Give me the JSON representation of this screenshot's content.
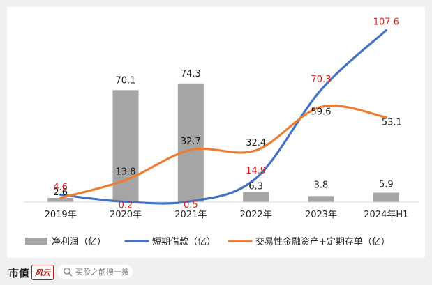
{
  "chart_data": {
    "type": "bar+line",
    "categories": [
      "2019年",
      "2020年",
      "2021年",
      "2022年",
      "2023年",
      "2024年H1"
    ],
    "ylim": [
      0,
      110
    ],
    "grid": false,
    "legend_position": "bottom",
    "series": [
      {
        "name": "净利润（亿）",
        "kind": "bar",
        "color": "#a5a5a5",
        "values": [
          2.6,
          70.1,
          74.3,
          6.3,
          3.8,
          5.9
        ],
        "labels": [
          "2.6",
          "70.1",
          "74.3",
          "6.3",
          "3.8",
          "5.9"
        ]
      },
      {
        "name": "短期借款（亿）",
        "kind": "line",
        "color": "#4472c4",
        "label_color": "#e02020",
        "values": [
          4.6,
          0.2,
          0.5,
          14.9,
          70.3,
          107.6
        ],
        "labels": [
          "4.6",
          "0.2",
          "0.5",
          "14.9",
          "70.3",
          "107.6"
        ]
      },
      {
        "name": "交易性金融资产+定期存单（亿）",
        "kind": "line",
        "color": "#ed7d31",
        "label_color": "#1a1a1a",
        "values": [
          2.6,
          13.8,
          32.7,
          32.4,
          59.6,
          53.1
        ],
        "labels": [
          "2.6",
          "13.8",
          "32.7",
          "32.4",
          "59.6",
          "53.1"
        ]
      }
    ]
  },
  "footer": {
    "brand": "市值",
    "brand_mark": "风云",
    "search_placeholder": "买股之前搜一搜",
    "search_icon": "search-icon"
  }
}
